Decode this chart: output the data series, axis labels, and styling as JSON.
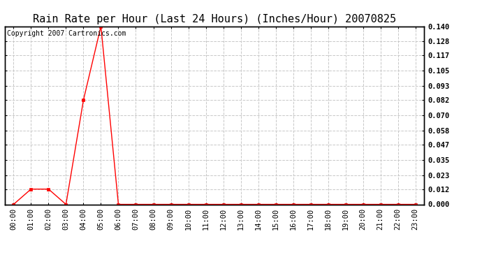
{
  "title": "Rain Rate per Hour (Last 24 Hours) (Inches/Hour) 20070825",
  "copyright_text": "Copyright 2007 Cartronics.com",
  "x_labels": [
    "00:00",
    "01:00",
    "02:00",
    "03:00",
    "04:00",
    "05:00",
    "06:00",
    "07:00",
    "08:00",
    "09:00",
    "10:00",
    "11:00",
    "12:00",
    "13:00",
    "14:00",
    "15:00",
    "16:00",
    "17:00",
    "18:00",
    "19:00",
    "20:00",
    "21:00",
    "22:00",
    "23:00"
  ],
  "y_values": [
    0.0,
    0.012,
    0.012,
    0.0,
    0.082,
    0.14,
    0.0,
    0.0,
    0.0,
    0.0,
    0.0,
    0.0,
    0.0,
    0.0,
    0.0,
    0.0,
    0.0,
    0.0,
    0.0,
    0.0,
    0.0,
    0.0,
    0.0,
    0.0
  ],
  "y_ticks": [
    0.0,
    0.012,
    0.023,
    0.035,
    0.047,
    0.058,
    0.07,
    0.082,
    0.093,
    0.105,
    0.117,
    0.128,
    0.14
  ],
  "line_color": "#ff0000",
  "marker": "s",
  "marker_size": 2.5,
  "grid_color": "#c8c8c8",
  "background_color": "#ffffff",
  "title_fontsize": 11,
  "copyright_fontsize": 7,
  "tick_fontsize": 7.5,
  "ylim": [
    0.0,
    0.14
  ],
  "xlim": [
    -0.5,
    23.5
  ]
}
